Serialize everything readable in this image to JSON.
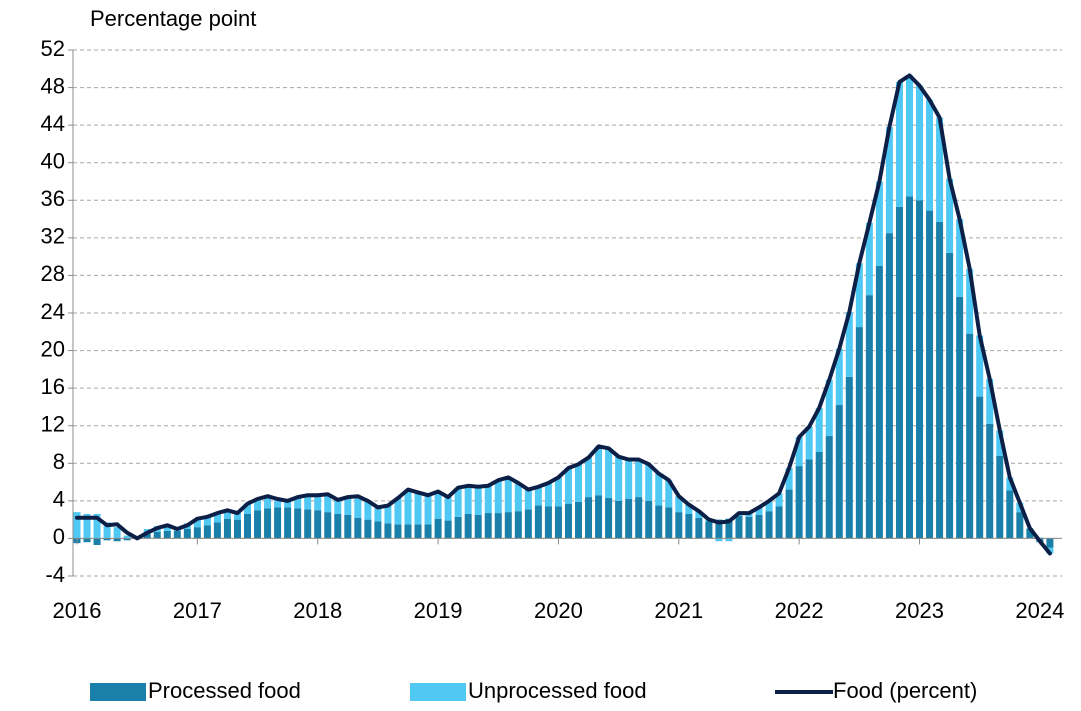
{
  "chart_data": {
    "type": "bar",
    "stacked": true,
    "y_label": "Percentage point",
    "categories": [
      "2016",
      null,
      null,
      null,
      null,
      null,
      null,
      null,
      null,
      null,
      null,
      null,
      "2017",
      null,
      null,
      null,
      null,
      null,
      null,
      null,
      null,
      null,
      null,
      null,
      "2018",
      null,
      null,
      null,
      null,
      null,
      null,
      null,
      null,
      null,
      null,
      null,
      "2019",
      null,
      null,
      null,
      null,
      null,
      null,
      null,
      null,
      null,
      null,
      null,
      "2020",
      null,
      null,
      null,
      null,
      null,
      null,
      null,
      null,
      null,
      null,
      null,
      "2021",
      null,
      null,
      null,
      null,
      null,
      null,
      null,
      null,
      null,
      null,
      null,
      "2022",
      null,
      null,
      null,
      null,
      null,
      null,
      null,
      null,
      null,
      null,
      null,
      "2023",
      null,
      null,
      null,
      null,
      null,
      null,
      null,
      null,
      null,
      null,
      null,
      "2024",
      null
    ],
    "series": [
      {
        "name": "Processed food",
        "type": "bar",
        "color": "#1a7fa9",
        "values": [
          -0.5,
          -0.4,
          -0.7,
          -0.2,
          -0.3,
          -0.2,
          0.1,
          0.5,
          0.7,
          0.8,
          0.8,
          1.0,
          1.2,
          1.4,
          1.7,
          2.1,
          2.0,
          2.6,
          3.0,
          3.2,
          3.3,
          3.3,
          3.2,
          3.1,
          3.0,
          2.8,
          2.6,
          2.5,
          2.2,
          2.0,
          1.8,
          1.6,
          1.5,
          1.5,
          1.5,
          1.5,
          2.1,
          1.9,
          2.3,
          2.6,
          2.5,
          2.7,
          2.7,
          2.8,
          2.9,
          3.1,
          3.5,
          3.4,
          3.4,
          3.7,
          3.9,
          4.4,
          4.6,
          4.3,
          4.0,
          4.2,
          4.4,
          4.0,
          3.5,
          3.3,
          2.8,
          2.6,
          2.2,
          1.8,
          2.0,
          2.1,
          2.4,
          2.3,
          2.5,
          2.9,
          3.4,
          5.2,
          7.7,
          8.4,
          9.2,
          10.9,
          14.2,
          17.2,
          22.5,
          25.9,
          29.0,
          32.5,
          35.3,
          36.4,
          36.0,
          34.9,
          33.7,
          30.4,
          25.7,
          21.8,
          15.1,
          12.2,
          8.8,
          5.1,
          2.8,
          1.0,
          -0.4,
          -1.0
        ]
      },
      {
        "name": "Unprocessed food",
        "type": "bar",
        "color": "#4fc8f4",
        "values": [
          2.8,
          2.6,
          2.6,
          1.7,
          1.2,
          0.3,
          0.1,
          0.5,
          0.6,
          0.7,
          0.4,
          0.6,
          0.9,
          0.9,
          1.0,
          0.9,
          0.7,
          1.1,
          1.2,
          1.3,
          0.9,
          0.7,
          1.2,
          1.5,
          1.6,
          1.9,
          1.5,
          1.9,
          2.3,
          2.0,
          1.5,
          1.9,
          2.8,
          3.7,
          3.4,
          3.1,
          2.9,
          2.5,
          3.1,
          3.0,
          3.0,
          2.9,
          3.5,
          3.7,
          3.0,
          2.1,
          2.0,
          2.5,
          3.1,
          3.8,
          4.0,
          4.2,
          5.2,
          5.3,
          4.7,
          4.2,
          4.0,
          3.9,
          3.4,
          2.9,
          1.7,
          1.0,
          0.7,
          0.2,
          -0.3,
          -0.3,
          0.3,
          0.4,
          0.8,
          1.1,
          1.4,
          2.3,
          3.1,
          3.5,
          4.7,
          6.0,
          6.0,
          6.9,
          6.8,
          7.7,
          9.0,
          11.3,
          13.3,
          12.9,
          12.2,
          11.8,
          11.1,
          7.9,
          8.3,
          6.9,
          6.5,
          4.8,
          2.7,
          1.4,
          1.0,
          0.1,
          0.1,
          -0.6
        ]
      },
      {
        "name": "Food (percent)",
        "type": "line",
        "color": "#0c1f46",
        "values": [
          2.2,
          2.2,
          2.2,
          1.4,
          1.5,
          0.6,
          0.0,
          0.6,
          1.1,
          1.4,
          1.0,
          1.4,
          2.1,
          2.3,
          2.7,
          3.0,
          2.7,
          3.7,
          4.2,
          4.5,
          4.2,
          4.0,
          4.4,
          4.6,
          4.6,
          4.7,
          4.1,
          4.4,
          4.5,
          4.0,
          3.3,
          3.5,
          4.3,
          5.2,
          4.9,
          4.6,
          5.0,
          4.4,
          5.4,
          5.6,
          5.5,
          5.6,
          6.2,
          6.5,
          5.9,
          5.2,
          5.5,
          5.9,
          6.5,
          7.5,
          7.9,
          8.6,
          9.8,
          9.6,
          8.7,
          8.4,
          8.4,
          7.9,
          6.9,
          6.2,
          4.5,
          3.6,
          2.9,
          2.0,
          1.7,
          1.8,
          2.7,
          2.7,
          3.3,
          4.0,
          4.8,
          7.5,
          10.8,
          11.9,
          13.9,
          16.9,
          20.2,
          24.1,
          29.3,
          33.6,
          38.0,
          43.8,
          48.6,
          49.3,
          48.2,
          46.7,
          44.8,
          38.3,
          34.0,
          28.7,
          21.6,
          17.0,
          11.5,
          6.5,
          3.8,
          1.1,
          -0.3,
          -1.6
        ]
      }
    ],
    "ylim": [
      -4,
      52
    ],
    "yticks": [
      -4,
      0,
      4,
      8,
      12,
      16,
      20,
      24,
      28,
      32,
      36,
      40,
      44,
      48,
      52
    ],
    "grid": true,
    "legend": "bottom"
  }
}
